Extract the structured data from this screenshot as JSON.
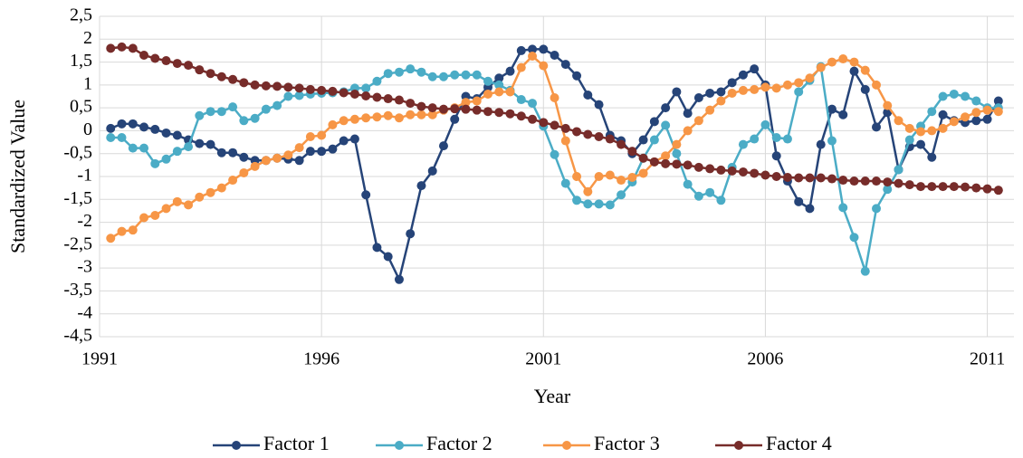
{
  "chart_data": {
    "type": "line",
    "xlabel": "Year",
    "ylabel": "Standardized Value",
    "x": [
      1991.25,
      1991.5,
      1991.75,
      1992,
      1992.25,
      1992.5,
      1992.75,
      1993,
      1993.25,
      1993.5,
      1993.75,
      1994,
      1994.25,
      1994.5,
      1994.75,
      1995,
      1995.25,
      1995.5,
      1995.75,
      1996,
      1996.25,
      1996.5,
      1996.75,
      1997,
      1997.25,
      1997.5,
      1997.75,
      1998,
      1998.25,
      1998.5,
      1998.75,
      1999,
      1999.25,
      1999.5,
      1999.75,
      2000,
      2000.25,
      2000.5,
      2000.75,
      2001,
      2001.25,
      2001.5,
      2001.75,
      2002,
      2002.25,
      2002.5,
      2002.75,
      2003,
      2003.25,
      2003.5,
      2003.75,
      2004,
      2004.25,
      2004.5,
      2004.75,
      2005,
      2005.25,
      2005.5,
      2005.75,
      2006,
      2006.25,
      2006.5,
      2006.75,
      2007,
      2007.25,
      2007.5,
      2007.75,
      2008,
      2008.25,
      2008.5,
      2008.75,
      2009,
      2009.25,
      2009.5,
      2009.75,
      2010,
      2010.25,
      2010.5,
      2010.75,
      2011,
      2011.25
    ],
    "series": [
      {
        "name": "Factor 1",
        "color": "#264478",
        "values": [
          0.05,
          0.15,
          0.15,
          0.08,
          0.03,
          -0.05,
          -0.1,
          -0.2,
          -0.28,
          -0.3,
          -0.48,
          -0.48,
          -0.58,
          -0.65,
          -0.65,
          -0.6,
          -0.62,
          -0.65,
          -0.45,
          -0.45,
          -0.4,
          -0.22,
          -0.18,
          -1.4,
          -2.55,
          -2.75,
          -3.25,
          -2.25,
          -1.2,
          -0.88,
          -0.33,
          0.25,
          0.75,
          0.7,
          0.95,
          1.15,
          1.3,
          1.75,
          1.78,
          1.78,
          1.65,
          1.45,
          1.2,
          0.78,
          0.57,
          -0.1,
          -0.22,
          -0.5,
          -0.2,
          0.2,
          0.5,
          0.85,
          0.38,
          0.72,
          0.82,
          0.85,
          1.05,
          1.22,
          1.35,
          1.0,
          -0.55,
          -1.1,
          -1.55,
          -1.7,
          -0.3,
          0.47,
          0.35,
          1.3,
          0.9,
          0.08,
          0.4,
          -0.85,
          -0.35,
          -0.3,
          -0.58,
          0.35,
          0.22,
          0.18,
          0.22,
          0.25,
          0.65
        ]
      },
      {
        "name": "Factor 2",
        "color": "#4bacc6",
        "values": [
          -0.15,
          -0.15,
          -0.38,
          -0.38,
          -0.72,
          -0.62,
          -0.45,
          -0.35,
          0.33,
          0.42,
          0.42,
          0.52,
          0.22,
          0.27,
          0.47,
          0.55,
          0.75,
          0.77,
          0.8,
          0.82,
          0.83,
          0.85,
          0.93,
          0.93,
          1.08,
          1.25,
          1.28,
          1.35,
          1.28,
          1.18,
          1.18,
          1.22,
          1.22,
          1.22,
          1.08,
          1.0,
          0.88,
          0.68,
          0.6,
          0.1,
          -0.52,
          -1.15,
          -1.52,
          -1.6,
          -1.6,
          -1.62,
          -1.4,
          -1.12,
          -0.6,
          -0.2,
          0.12,
          -0.5,
          -1.17,
          -1.43,
          -1.35,
          -1.52,
          -0.8,
          -0.3,
          -0.18,
          0.13,
          -0.15,
          -0.18,
          0.85,
          1.1,
          1.4,
          -0.22,
          -1.68,
          -2.33,
          -3.07,
          -1.7,
          -1.28,
          -0.85,
          -0.2,
          0.1,
          0.42,
          0.75,
          0.8,
          0.75,
          0.65,
          0.5,
          0.5
        ]
      },
      {
        "name": "Factor 3",
        "color": "#f79646",
        "values": [
          -2.35,
          -2.2,
          -2.17,
          -1.9,
          -1.85,
          -1.7,
          -1.55,
          -1.62,
          -1.45,
          -1.35,
          -1.25,
          -1.08,
          -0.92,
          -0.78,
          -0.65,
          -0.6,
          -0.53,
          -0.37,
          -0.13,
          -0.1,
          0.13,
          0.22,
          0.25,
          0.28,
          0.3,
          0.33,
          0.28,
          0.35,
          0.35,
          0.35,
          0.45,
          0.5,
          0.62,
          0.65,
          0.8,
          0.85,
          0.85,
          1.38,
          1.63,
          1.42,
          0.72,
          -0.22,
          -1.0,
          -1.33,
          -1.0,
          -0.97,
          -1.08,
          -1.02,
          -0.93,
          -0.68,
          -0.55,
          -0.3,
          0.0,
          0.22,
          0.45,
          0.65,
          0.82,
          0.88,
          0.9,
          0.95,
          0.93,
          1.0,
          1.05,
          1.15,
          1.38,
          1.5,
          1.57,
          1.5,
          1.32,
          1.0,
          0.55,
          0.22,
          0.05,
          -0.02,
          0.0,
          0.05,
          0.2,
          0.3,
          0.4,
          0.45,
          0.42
        ]
      },
      {
        "name": "Factor 4",
        "color": "#772c2a",
        "values": [
          1.8,
          1.83,
          1.8,
          1.65,
          1.58,
          1.53,
          1.47,
          1.43,
          1.33,
          1.25,
          1.18,
          1.12,
          1.05,
          1.0,
          0.98,
          0.97,
          0.95,
          0.93,
          0.9,
          0.88,
          0.86,
          0.83,
          0.8,
          0.76,
          0.73,
          0.7,
          0.67,
          0.6,
          0.53,
          0.5,
          0.47,
          0.48,
          0.47,
          0.45,
          0.42,
          0.4,
          0.37,
          0.32,
          0.25,
          0.18,
          0.12,
          0.05,
          -0.02,
          -0.08,
          -0.13,
          -0.18,
          -0.3,
          -0.45,
          -0.6,
          -0.68,
          -0.72,
          -0.73,
          -0.75,
          -0.8,
          -0.83,
          -0.86,
          -0.88,
          -0.9,
          -0.93,
          -0.97,
          -1.0,
          -1.02,
          -1.03,
          -1.03,
          -1.03,
          -1.05,
          -1.08,
          -1.1,
          -1.1,
          -1.1,
          -1.12,
          -1.15,
          -1.18,
          -1.22,
          -1.22,
          -1.22,
          -1.22,
          -1.23,
          -1.25,
          -1.27,
          -1.3
        ]
      }
    ],
    "xlim": [
      1991,
      2011.6
    ],
    "xticks": [
      1991,
      1996,
      2001,
      2006,
      2011
    ],
    "ylim": [
      -4.5,
      2.5
    ],
    "yticks": [
      {
        "value": -4.5,
        "label": "-4,5"
      },
      -4,
      {
        "value": -3.5,
        "label": "-3,5"
      },
      -3,
      {
        "value": -2.5,
        "label": "-2,5"
      },
      -2,
      {
        "value": -1.5,
        "label": "-1,5"
      },
      -1,
      {
        "value": -0.5,
        "label": "-0,5"
      },
      0,
      {
        "value": 0.5,
        "label": "0,5"
      },
      1,
      {
        "value": 1.5,
        "label": "1,5"
      },
      2,
      {
        "value": 2.5,
        "label": "2,5"
      }
    ],
    "grid": true,
    "legend": "bottom"
  }
}
